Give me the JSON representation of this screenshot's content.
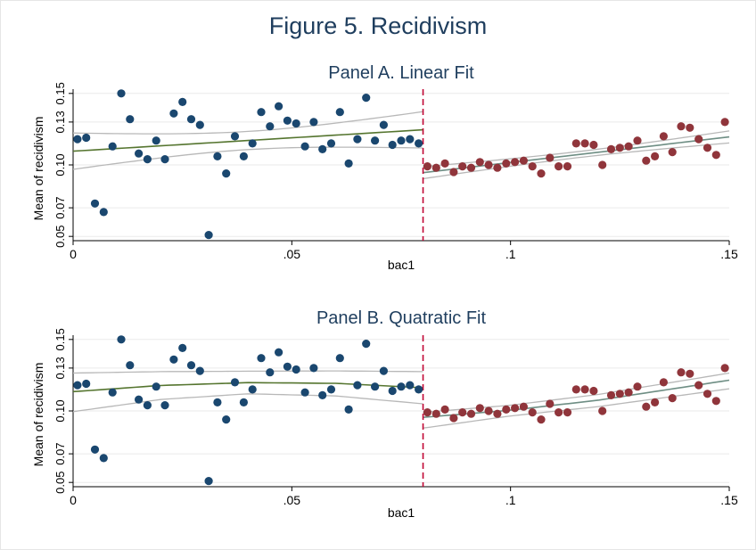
{
  "figure": {
    "title": "Figure 5. Recidivism"
  },
  "colors": {
    "left_points": "#1a476f",
    "right_points": "#90353b",
    "fit_left": "#55752f",
    "fit_right": "#6e8e84",
    "ci": "#b8b8b8",
    "cutoff": "#c10534",
    "grid": "#eaeaea",
    "text": "#1f3e5e"
  },
  "chart_data": [
    {
      "type": "scatter",
      "title": "Panel A. Linear Fit",
      "xlabel": "bac1",
      "ylabel": "Mean of recidivism",
      "xlim": [
        0,
        0.15
      ],
      "ylim": [
        0.047,
        0.153
      ],
      "xticks": [
        0,
        0.05,
        0.1,
        0.15
      ],
      "xtick_labels": [
        "0",
        ".05",
        ".1",
        ".15"
      ],
      "yticks": [
        0.05,
        0.07,
        0.1,
        0.13,
        0.15
      ],
      "ytick_labels": [
        "0.05",
        "0.07",
        "0.10",
        "0.13",
        "0.15"
      ],
      "grid": true,
      "cutoff": 0.08,
      "series": [
        {
          "x": [
            0.001,
            0.003,
            0.005,
            0.007,
            0.009,
            0.011,
            0.013,
            0.015,
            0.017,
            0.019,
            0.021,
            0.023,
            0.025,
            0.027,
            0.029,
            0.031,
            0.033,
            0.035,
            0.037,
            0.039,
            0.041,
            0.043,
            0.045,
            0.047,
            0.049,
            0.051,
            0.053,
            0.055,
            0.057,
            0.059,
            0.061,
            0.063,
            0.065,
            0.067,
            0.069,
            0.071,
            0.073,
            0.075,
            0.077,
            0.079
          ],
          "y": [
            0.118,
            0.119,
            0.073,
            0.067,
            0.113,
            0.15,
            0.132,
            0.108,
            0.104,
            0.117,
            0.104,
            0.136,
            0.144,
            0.132,
            0.128,
            0.051,
            0.106,
            0.094,
            0.12,
            0.106,
            0.115,
            0.137,
            0.127,
            0.141,
            0.131,
            0.129,
            0.113,
            0.13,
            0.111,
            0.115,
            0.137,
            0.101,
            0.118,
            0.147,
            0.117,
            0.128,
            0.114,
            0.117,
            0.118,
            0.115
          ]
        },
        {
          "x": [
            0.081,
            0.083,
            0.085,
            0.087,
            0.089,
            0.091,
            0.093,
            0.095,
            0.097,
            0.099,
            0.101,
            0.103,
            0.105,
            0.107,
            0.109,
            0.111,
            0.113,
            0.115,
            0.117,
            0.119,
            0.121,
            0.123,
            0.125,
            0.127,
            0.129,
            0.131,
            0.133,
            0.135,
            0.137,
            0.139,
            0.141,
            0.143,
            0.145,
            0.147,
            0.149
          ],
          "y": [
            0.099,
            0.098,
            0.101,
            0.095,
            0.099,
            0.098,
            0.102,
            0.1,
            0.098,
            0.101,
            0.102,
            0.103,
            0.099,
            0.094,
            0.105,
            0.099,
            0.099,
            0.115,
            0.115,
            0.114,
            0.1,
            0.111,
            0.112,
            0.113,
            0.117,
            0.103,
            0.106,
            0.12,
            0.109,
            0.127,
            0.126,
            0.118,
            0.112,
            0.107,
            0.13
          ]
        }
      ]
    },
    {
      "type": "scatter",
      "title": "Panel B. Quatratic Fit",
      "xlabel": "bac1",
      "ylabel": "Mean of recidivism",
      "xlim": [
        0,
        0.15
      ],
      "ylim": [
        0.047,
        0.153
      ],
      "xticks": [
        0,
        0.05,
        0.1,
        0.15
      ],
      "xtick_labels": [
        "0",
        ".05",
        ".1",
        ".15"
      ],
      "yticks": [
        0.05,
        0.07,
        0.1,
        0.13,
        0.15
      ],
      "ytick_labels": [
        "0.05",
        "0.07",
        "0.10",
        "0.13",
        "0.15"
      ],
      "grid": true,
      "cutoff": 0.08,
      "series": [
        {
          "x": [
            0.001,
            0.003,
            0.005,
            0.007,
            0.009,
            0.011,
            0.013,
            0.015,
            0.017,
            0.019,
            0.021,
            0.023,
            0.025,
            0.027,
            0.029,
            0.031,
            0.033,
            0.035,
            0.037,
            0.039,
            0.041,
            0.043,
            0.045,
            0.047,
            0.049,
            0.051,
            0.053,
            0.055,
            0.057,
            0.059,
            0.061,
            0.063,
            0.065,
            0.067,
            0.069,
            0.071,
            0.073,
            0.075,
            0.077,
            0.079
          ],
          "y": [
            0.118,
            0.119,
            0.073,
            0.067,
            0.113,
            0.15,
            0.132,
            0.108,
            0.104,
            0.117,
            0.104,
            0.136,
            0.144,
            0.132,
            0.128,
            0.051,
            0.106,
            0.094,
            0.12,
            0.106,
            0.115,
            0.137,
            0.127,
            0.141,
            0.131,
            0.129,
            0.113,
            0.13,
            0.111,
            0.115,
            0.137,
            0.101,
            0.118,
            0.147,
            0.117,
            0.128,
            0.114,
            0.117,
            0.118,
            0.115
          ]
        },
        {
          "x": [
            0.081,
            0.083,
            0.085,
            0.087,
            0.089,
            0.091,
            0.093,
            0.095,
            0.097,
            0.099,
            0.101,
            0.103,
            0.105,
            0.107,
            0.109,
            0.111,
            0.113,
            0.115,
            0.117,
            0.119,
            0.121,
            0.123,
            0.125,
            0.127,
            0.129,
            0.131,
            0.133,
            0.135,
            0.137,
            0.139,
            0.141,
            0.143,
            0.145,
            0.147,
            0.149
          ],
          "y": [
            0.099,
            0.098,
            0.101,
            0.095,
            0.099,
            0.098,
            0.102,
            0.1,
            0.098,
            0.101,
            0.102,
            0.103,
            0.099,
            0.094,
            0.105,
            0.099,
            0.099,
            0.115,
            0.115,
            0.114,
            0.1,
            0.111,
            0.112,
            0.113,
            0.117,
            0.103,
            0.106,
            0.12,
            0.109,
            0.127,
            0.126,
            0.118,
            0.112,
            0.107,
            0.13
          ]
        }
      ],
      "fits": [
        {
          "x": [
            0.0,
            0.02,
            0.04,
            0.06,
            0.08
          ],
          "fit": [
            0.1135,
            0.1178,
            0.1198,
            0.1193,
            0.1162
          ],
          "ci_low": [
            0.0995,
            0.108,
            0.112,
            0.1105,
            0.105
          ],
          "ci_high": [
            0.1265,
            0.1275,
            0.1278,
            0.128,
            0.1275
          ]
        },
        {
          "x": [
            0.08,
            0.1,
            0.12,
            0.15
          ],
          "fit": [
            0.0955,
            0.1005,
            0.1075,
            0.1215
          ],
          "ci_low": [
            0.088,
            0.0965,
            0.103,
            0.1155
          ],
          "ci_high": [
            0.099,
            0.104,
            0.1115,
            0.1265
          ]
        }
      ]
    }
  ]
}
